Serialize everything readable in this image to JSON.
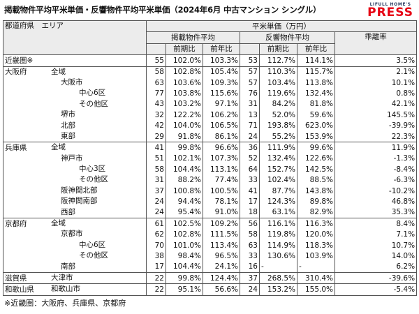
{
  "title": "掲載物件平均平米単価・反響物件平均平米単価（2024年6月 中古マンション シングル）",
  "logo": {
    "top": "LIFULL HOME'S",
    "main": "PRESS"
  },
  "header": {
    "area_col": "都道府県　エリア",
    "group": "平米単価（万円）",
    "listed": "掲載物件平均",
    "inquiry": "反響物件平均",
    "prev_period": "前期比",
    "prev_year": "前年比",
    "divergence": "乖離率"
  },
  "rows": [
    {
      "pref": "近畿圏※",
      "area": "",
      "lv": 0,
      "lp": "55",
      "lpp": "102.0%",
      "lpy": "103.3%",
      "ip": "53",
      "ipp": "112.7%",
      "ipy": "114.1%",
      "div": "3.5%"
    },
    {
      "pref": "大阪府",
      "area": "全域",
      "lv": 0,
      "lp": "58",
      "lpp": "102.8%",
      "lpy": "105.4%",
      "ip": "57",
      "ipp": "110.3%",
      "ipy": "115.7%",
      "div": "2.1%"
    },
    {
      "pref": "",
      "area": "大阪市",
      "lv": 1,
      "lp": "63",
      "lpp": "103.6%",
      "lpy": "109.3%",
      "ip": "57",
      "ipp": "103.4%",
      "ipy": "113.8%",
      "div": "10.1%"
    },
    {
      "pref": "",
      "area": "中心6区",
      "lv": 2,
      "lp": "77",
      "lpp": "103.8%",
      "lpy": "115.6%",
      "ip": "76",
      "ipp": "119.6%",
      "ipy": "132.4%",
      "div": "0.8%"
    },
    {
      "pref": "",
      "area": "その他区",
      "lv": 2,
      "lp": "43",
      "lpp": "103.2%",
      "lpy": "97.1%",
      "ip": "31",
      "ipp": "84.2%",
      "ipy": "81.8%",
      "div": "42.1%"
    },
    {
      "pref": "",
      "area": "堺市",
      "lv": 1,
      "lp": "32",
      "lpp": "122.2%",
      "lpy": "106.2%",
      "ip": "13",
      "ipp": "52.0%",
      "ipy": "59.6%",
      "div": "145.5%"
    },
    {
      "pref": "",
      "area": "北部",
      "lv": 1,
      "lp": "42",
      "lpp": "104.0%",
      "lpy": "106.5%",
      "ip": "71",
      "ipp": "193.8%",
      "ipy": "623.0%",
      "div": "-39.9%"
    },
    {
      "pref": "",
      "area": "東部",
      "lv": 1,
      "lp": "29",
      "lpp": "91.8%",
      "lpy": "86.1%",
      "ip": "24",
      "ipp": "55.2%",
      "ipy": "153.9%",
      "div": "22.3%"
    },
    {
      "pref": "兵庫県",
      "area": "全域",
      "lv": 0,
      "lp": "41",
      "lpp": "99.8%",
      "lpy": "96.6%",
      "ip": "36",
      "ipp": "111.9%",
      "ipy": "99.6%",
      "div": "11.9%"
    },
    {
      "pref": "",
      "area": "神戸市",
      "lv": 1,
      "lp": "51",
      "lpp": "102.1%",
      "lpy": "107.3%",
      "ip": "52",
      "ipp": "132.4%",
      "ipy": "122.6%",
      "div": "-1.3%"
    },
    {
      "pref": "",
      "area": "中心3区",
      "lv": 2,
      "lp": "58",
      "lpp": "104.4%",
      "lpy": "113.1%",
      "ip": "64",
      "ipp": "152.7%",
      "ipy": "142.5%",
      "div": "-8.4%"
    },
    {
      "pref": "",
      "area": "その他区",
      "lv": 2,
      "lp": "31",
      "lpp": "88.2%",
      "lpy": "77.4%",
      "ip": "33",
      "ipp": "102.4%",
      "ipy": "88.5%",
      "div": "-6.3%"
    },
    {
      "pref": "",
      "area": "阪神間北部",
      "lv": 1,
      "lp": "37",
      "lpp": "100.8%",
      "lpy": "100.5%",
      "ip": "41",
      "ipp": "87.7%",
      "ipy": "143.8%",
      "div": "-10.2%"
    },
    {
      "pref": "",
      "area": "阪神間南部",
      "lv": 1,
      "lp": "24",
      "lpp": "94.4%",
      "lpy": "78.1%",
      "ip": "17",
      "ipp": "124.3%",
      "ipy": "89.8%",
      "div": "46.8%"
    },
    {
      "pref": "",
      "area": "西部",
      "lv": 1,
      "lp": "24",
      "lpp": "95.4%",
      "lpy": "91.0%",
      "ip": "18",
      "ipp": "63.1%",
      "ipy": "82.9%",
      "div": "35.3%"
    },
    {
      "pref": "京都府",
      "area": "全域",
      "lv": 0,
      "lp": "61",
      "lpp": "102.5%",
      "lpy": "109.2%",
      "ip": "56",
      "ipp": "116.1%",
      "ipy": "116.3%",
      "div": "8.4%"
    },
    {
      "pref": "",
      "area": "京都市",
      "lv": 1,
      "lp": "62",
      "lpp": "102.8%",
      "lpy": "111.5%",
      "ip": "58",
      "ipp": "119.8%",
      "ipy": "120.0%",
      "div": "7.1%"
    },
    {
      "pref": "",
      "area": "中心6区",
      "lv": 2,
      "lp": "70",
      "lpp": "101.0%",
      "lpy": "113.4%",
      "ip": "63",
      "ipp": "114.9%",
      "ipy": "118.3%",
      "div": "10.7%"
    },
    {
      "pref": "",
      "area": "その他区",
      "lv": 2,
      "lp": "38",
      "lpp": "98.4%",
      "lpy": "96.5%",
      "ip": "33",
      "ipp": "130.6%",
      "ipy": "103.9%",
      "div": "14.0%"
    },
    {
      "pref": "",
      "area": "南部",
      "lv": 1,
      "lp": "17",
      "lpp": "104.4%",
      "lpy": "24.1%",
      "ip": "16",
      "ipp": "-",
      "ipy": "-",
      "div": "6.2%"
    },
    {
      "pref": "滋賀県",
      "area": "大津市",
      "lv": 0,
      "lp": "22",
      "lpp": "99.8%",
      "lpy": "124.4%",
      "ip": "37",
      "ipp": "268.5%",
      "ipy": "310.4%",
      "div": "-39.6%"
    },
    {
      "pref": "和歌山県",
      "area": "和歌山市",
      "lv": 0,
      "lp": "22",
      "lpp": "95.1%",
      "lpy": "56.6%",
      "ip": "24",
      "ipp": "153.2%",
      "ipy": "155.0%",
      "div": "-5.4%"
    }
  ],
  "footnote": "※近畿圏：大阪府、兵庫県、京都府"
}
